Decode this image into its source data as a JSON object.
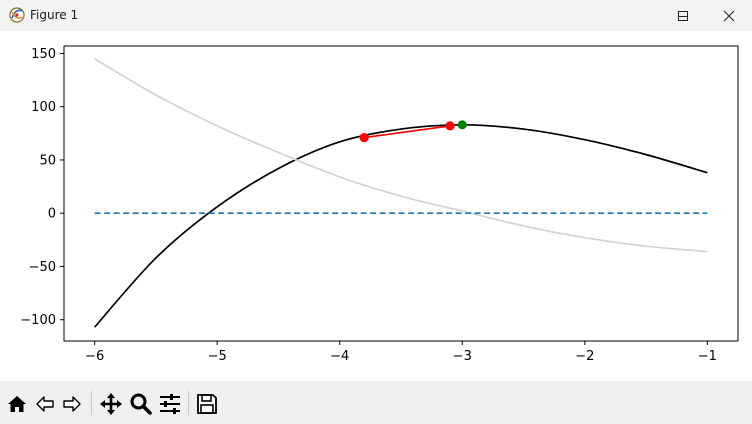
{
  "window": {
    "title": "Figure 1",
    "controls": [
      "minimize-icon",
      "maximize-icon",
      "close-icon"
    ]
  },
  "toolbar": {
    "buttons": [
      "home-icon",
      "back-icon",
      "forward-icon",
      "pan-icon",
      "zoom-icon",
      "configure-subplots-icon",
      "save-icon"
    ]
  },
  "chart_data": {
    "type": "line",
    "title": "",
    "xlabel": "",
    "ylabel": "",
    "xlim": [
      -6.25,
      -0.75
    ],
    "ylim": [
      -120,
      157
    ],
    "xticks": [
      -6,
      -5,
      -4,
      -3,
      -2,
      -1
    ],
    "xtick_labels": [
      "−6",
      "−5",
      "−4",
      "−3",
      "−2",
      "−1"
    ],
    "yticks": [
      -100,
      -50,
      0,
      50,
      100,
      150
    ],
    "ytick_labels": [
      "−100",
      "−50",
      "0",
      "50",
      "100",
      "150"
    ],
    "grid": false,
    "series": [
      {
        "style": "solid",
        "color": "#000000",
        "x": [
          -6,
          -5.5,
          -5,
          -4.5,
          -4,
          -3.5,
          -3,
          -2.5,
          -2,
          -1.5,
          -1
        ],
        "y": [
          -107,
          -42,
          6,
          42,
          67,
          79,
          83,
          79,
          69,
          55,
          38
        ]
      },
      {
        "style": "solid",
        "color": "#d3d3d3",
        "x": [
          -6,
          -5.5,
          -5,
          -4.5,
          -4,
          -3.5,
          -3,
          -2.5,
          -2,
          -1.5,
          -1
        ],
        "y": [
          145,
          111,
          82,
          57,
          34,
          16,
          2,
          -12,
          -23,
          -31,
          -36
        ]
      },
      {
        "style": "dashed",
        "color": "#1f77b4",
        "x": [
          -6,
          -1
        ],
        "y": [
          0,
          0
        ]
      },
      {
        "style": "solid",
        "color": "#ff0000",
        "markers": true,
        "marker_color": "#ff0000",
        "x": [
          -3.8,
          -3.1
        ],
        "y": [
          71,
          82
        ]
      },
      {
        "style": "marker",
        "color": "#008000",
        "x": [
          -3.0
        ],
        "y": [
          83
        ]
      }
    ]
  }
}
